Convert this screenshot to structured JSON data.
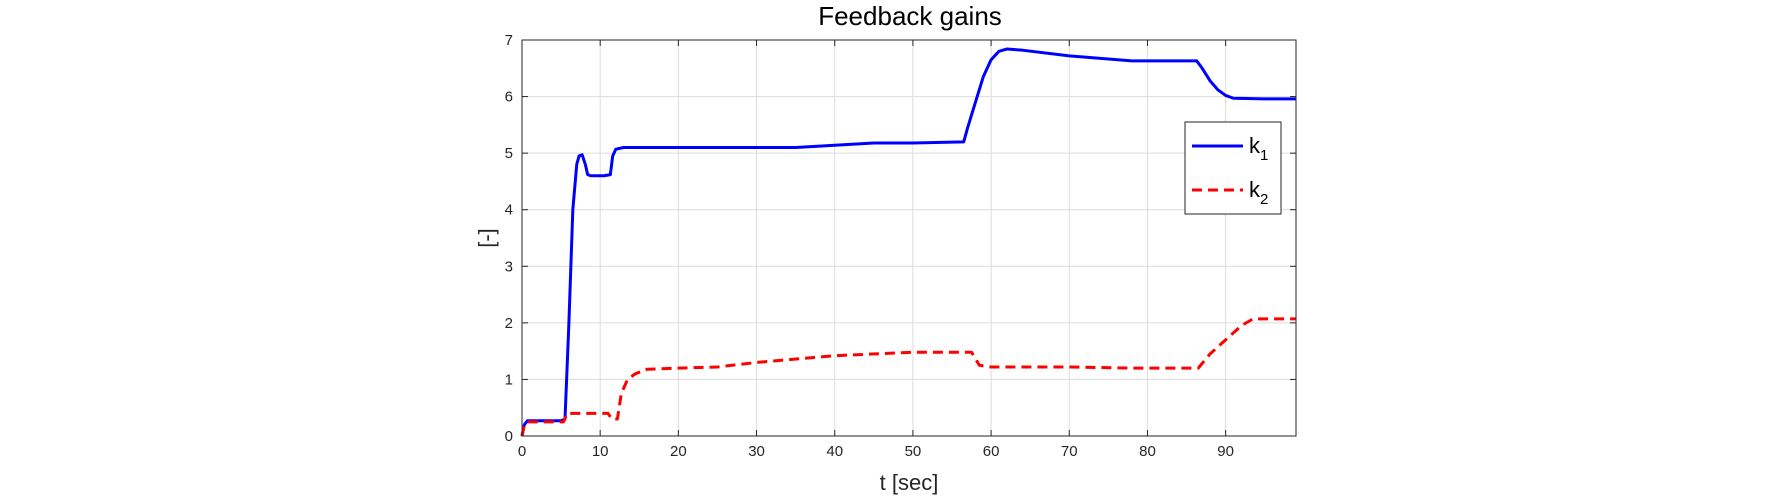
{
  "chart_data": {
    "type": "line",
    "title": "Feedback gains",
    "xlabel": "t [sec]",
    "ylabel": "[-]",
    "xlim": [
      0,
      99
    ],
    "ylim": [
      0,
      7
    ],
    "xticks": [
      "0",
      "10",
      "20",
      "30",
      "40",
      "50",
      "60",
      "70",
      "80",
      "90"
    ],
    "xtick_values": [
      0,
      10,
      20,
      30,
      40,
      50,
      60,
      70,
      80,
      90
    ],
    "yticks": [
      "0",
      "1",
      "2",
      "3",
      "4",
      "5",
      "6",
      "7"
    ],
    "ytick_values": [
      0,
      1,
      2,
      3,
      4,
      5,
      6,
      7
    ],
    "grid": true,
    "legend": {
      "position": "right",
      "entries": [
        {
          "base": "k",
          "sub": "1"
        },
        {
          "base": "k",
          "sub": "2"
        }
      ]
    },
    "series": [
      {
        "name": "k1",
        "color": "#0000ff",
        "style": "solid",
        "x": [
          0,
          0.3,
          0.7,
          5,
          5.5,
          6,
          6.5,
          7,
          7.3,
          7.7,
          8.1,
          8.4,
          8.8,
          9.3,
          10.5,
          11.3,
          11.6,
          12,
          13,
          20,
          35,
          45,
          50,
          56.5,
          57,
          58,
          59,
          60,
          61,
          62,
          64,
          70,
          78,
          86.3,
          87,
          88,
          89,
          90,
          91,
          95,
          99
        ],
        "y": [
          0,
          0.2,
          0.27,
          0.27,
          0.3,
          2.0,
          4.0,
          4.8,
          4.95,
          4.97,
          4.8,
          4.62,
          4.6,
          4.6,
          4.6,
          4.62,
          4.95,
          5.07,
          5.1,
          5.1,
          5.1,
          5.18,
          5.18,
          5.2,
          5.45,
          5.9,
          6.35,
          6.65,
          6.8,
          6.84,
          6.82,
          6.72,
          6.63,
          6.63,
          6.5,
          6.28,
          6.12,
          6.02,
          5.97,
          5.96,
          5.96
        ]
      },
      {
        "name": "k2",
        "color": "#ff0000",
        "style": "dashed",
        "x": [
          0,
          0.3,
          0.7,
          5.3,
          5.8,
          11,
          11.5,
          12.2,
          12.7,
          13.5,
          14.5,
          16,
          20,
          25,
          30,
          40,
          50,
          57.5,
          58.5,
          60,
          70,
          78,
          86.5,
          88,
          90,
          92,
          93.5,
          99
        ],
        "y": [
          0,
          0.2,
          0.25,
          0.25,
          0.4,
          0.4,
          0.3,
          0.3,
          0.75,
          1.0,
          1.1,
          1.18,
          1.2,
          1.22,
          1.3,
          1.42,
          1.48,
          1.48,
          1.25,
          1.22,
          1.22,
          1.2,
          1.2,
          1.45,
          1.7,
          1.95,
          2.07,
          2.07
        ]
      }
    ]
  }
}
